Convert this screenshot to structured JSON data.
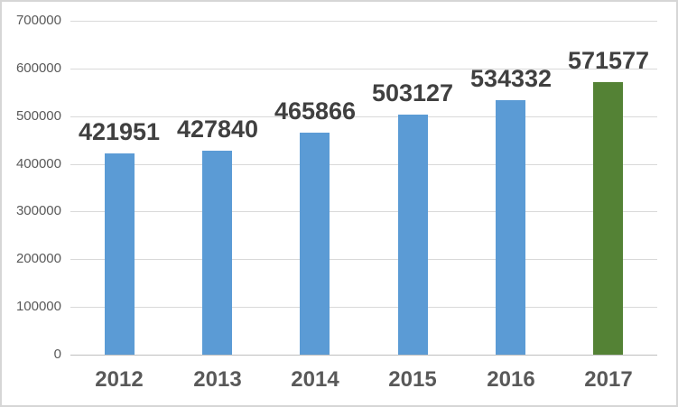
{
  "chart_data": {
    "type": "bar",
    "title": "",
    "xlabel": "",
    "ylabel": "",
    "categories": [
      "2012",
      "2013",
      "2014",
      "2015",
      "2016",
      "2017"
    ],
    "values": [
      421951,
      427840,
      465866,
      503127,
      534332,
      571577
    ],
    "data_labels": [
      "421951",
      "427840",
      "465866",
      "503127",
      "534332",
      "571577"
    ],
    "ylim": [
      0,
      700000
    ],
    "yticks": [
      0,
      100000,
      200000,
      300000,
      400000,
      500000,
      600000,
      700000
    ],
    "ytick_labels": [
      "0",
      "100000",
      "200000",
      "300000",
      "400000",
      "500000",
      "600000",
      "700000"
    ],
    "grid": true,
    "legend": false,
    "highlight_index": 5,
    "colors": {
      "bar_default": "#5b9bd5",
      "bar_highlight": "#548235",
      "gridline": "#d9d9d9",
      "axis_line": "#bfbfbf",
      "data_label": "#404040",
      "tick_label": "#595959",
      "frame_border": "#d6d6d6",
      "background": "#ffffff"
    }
  }
}
